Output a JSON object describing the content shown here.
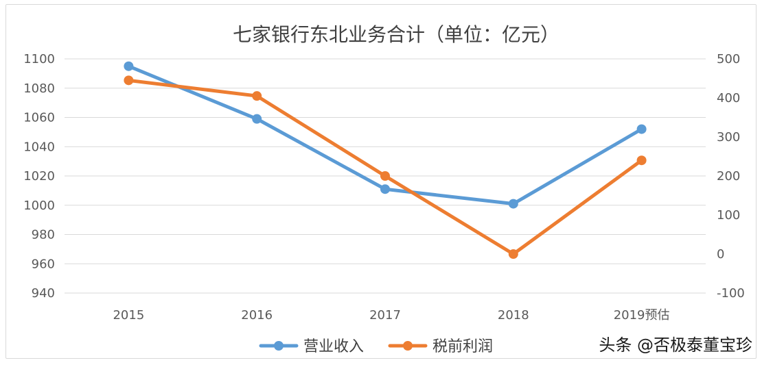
{
  "chart_data": {
    "type": "line",
    "title": "七家银行东北业务合计（单位：亿元）",
    "categories": [
      "2015",
      "2016",
      "2017",
      "2018",
      "2019预估"
    ],
    "series": [
      {
        "name": "营业收入",
        "axis": "left",
        "color": "#5B9BD5",
        "values": [
          1095,
          1059,
          1011,
          1001,
          1052
        ]
      },
      {
        "name": "税前利润",
        "axis": "right",
        "color": "#ED7D31",
        "values": [
          445,
          405,
          200,
          0,
          240
        ]
      }
    ],
    "y_left": {
      "range": [
        940,
        1100
      ],
      "ticks": [
        "1100",
        "1080",
        "1060",
        "1040",
        "1020",
        "1000",
        "980",
        "960",
        "940"
      ]
    },
    "y_right": {
      "range": [
        -100,
        500
      ],
      "ticks": [
        "500",
        "400",
        "300",
        "200",
        "100",
        "0",
        "-100"
      ]
    },
    "grid": true,
    "legend_position": "bottom"
  },
  "watermark": "头条 @否极泰董宝珍"
}
